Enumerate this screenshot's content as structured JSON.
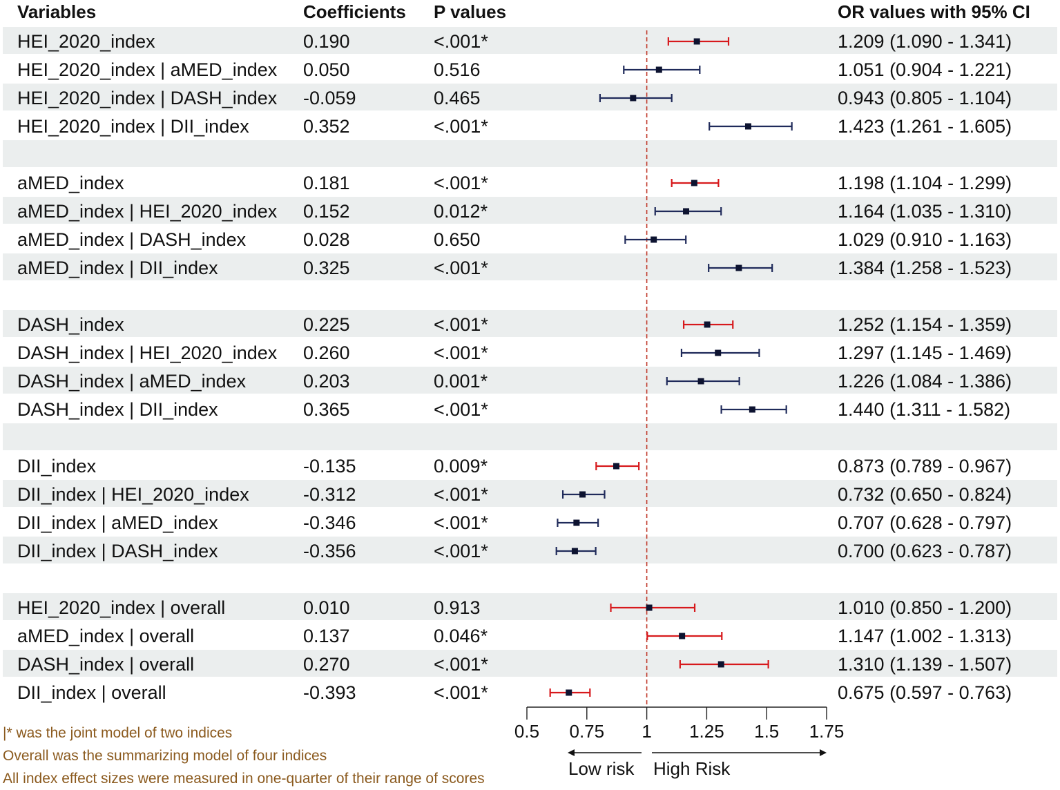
{
  "table": {
    "headers": {
      "variables": "Variables",
      "coefficients": "Coefficients",
      "p_values": "P values",
      "or_ci": "OR values with 95% CI"
    },
    "rows": [
      {
        "variable": "HEI_2020_index",
        "coef": "0.190",
        "p": "<.001*",
        "or_text": "1.209 (1.090 - 1.341)",
        "or": 1.209,
        "lower": 1.09,
        "upper": 1.341,
        "kind": "single",
        "shaded": true
      },
      {
        "variable": "HEI_2020_index | aMED_index",
        "coef": "0.050",
        "p": "0.516",
        "or_text": "1.051 (0.904 - 1.221)",
        "or": 1.051,
        "lower": 0.904,
        "upper": 1.221,
        "kind": "joint",
        "shaded": false
      },
      {
        "variable": "HEI_2020_index | DASH_index",
        "coef": "-0.059",
        "p": "0.465",
        "or_text": "0.943 (0.805 - 1.104)",
        "or": 0.943,
        "lower": 0.805,
        "upper": 1.104,
        "kind": "joint",
        "shaded": true
      },
      {
        "variable": "HEI_2020_index | DII_index",
        "coef": "0.352",
        "p": "<.001*",
        "or_text": "1.423 (1.261 - 1.605)",
        "or": 1.423,
        "lower": 1.261,
        "upper": 1.605,
        "kind": "joint",
        "shaded": false
      },
      {
        "variable": "",
        "coef": "",
        "p": "",
        "or_text": "",
        "kind": "spacer",
        "shaded": true
      },
      {
        "variable": "aMED_index",
        "coef": "0.181",
        "p": "<.001*",
        "or_text": "1.198 (1.104 - 1.299)",
        "or": 1.198,
        "lower": 1.104,
        "upper": 1.299,
        "kind": "single",
        "shaded": false
      },
      {
        "variable": "aMED_index | HEI_2020_index",
        "coef": "0.152",
        "p": "0.012*",
        "or_text": "1.164 (1.035 - 1.310)",
        "or": 1.164,
        "lower": 1.035,
        "upper": 1.31,
        "kind": "joint",
        "shaded": true
      },
      {
        "variable": "aMED_index | DASH_index",
        "coef": "0.028",
        "p": "0.650",
        "or_text": "1.029 (0.910 - 1.163)",
        "or": 1.029,
        "lower": 0.91,
        "upper": 1.163,
        "kind": "joint",
        "shaded": false
      },
      {
        "variable": "aMED_index | DII_index",
        "coef": "0.325",
        "p": "<.001*",
        "or_text": "1.384 (1.258 - 1.523)",
        "or": 1.384,
        "lower": 1.258,
        "upper": 1.523,
        "kind": "joint",
        "shaded": true
      },
      {
        "variable": "",
        "coef": "",
        "p": "",
        "or_text": "",
        "kind": "spacer",
        "shaded": false
      },
      {
        "variable": "DASH_index",
        "coef": "0.225",
        "p": "<.001*",
        "or_text": "1.252 (1.154 - 1.359)",
        "or": 1.252,
        "lower": 1.154,
        "upper": 1.359,
        "kind": "single",
        "shaded": true
      },
      {
        "variable": "DASH_index | HEI_2020_index",
        "coef": "0.260",
        "p": "<.001*",
        "or_text": "1.297 (1.145 - 1.469)",
        "or": 1.297,
        "lower": 1.145,
        "upper": 1.469,
        "kind": "joint",
        "shaded": false
      },
      {
        "variable": "DASH_index | aMED_index",
        "coef": "0.203",
        "p": "0.001*",
        "or_text": "1.226 (1.084 - 1.386)",
        "or": 1.226,
        "lower": 1.084,
        "upper": 1.386,
        "kind": "joint",
        "shaded": true
      },
      {
        "variable": "DASH_index | DII_index",
        "coef": "0.365",
        "p": "<.001*",
        "or_text": "1.440 (1.311 - 1.582)",
        "or": 1.44,
        "lower": 1.311,
        "upper": 1.582,
        "kind": "joint",
        "shaded": false
      },
      {
        "variable": "",
        "coef": "",
        "p": "",
        "or_text": "",
        "kind": "spacer",
        "shaded": true
      },
      {
        "variable": "DII_index",
        "coef": "-0.135",
        "p": "0.009*",
        "or_text": "0.873 (0.789 - 0.967)",
        "or": 0.873,
        "lower": 0.789,
        "upper": 0.967,
        "kind": "single",
        "shaded": false
      },
      {
        "variable": "DII_index | HEI_2020_index",
        "coef": "-0.312",
        "p": "<.001*",
        "or_text": "0.732 (0.650 - 0.824)",
        "or": 0.732,
        "lower": 0.65,
        "upper": 0.824,
        "kind": "joint",
        "shaded": true
      },
      {
        "variable": "DII_index | aMED_index",
        "coef": "-0.346",
        "p": "<.001*",
        "or_text": "0.707 (0.628 - 0.797)",
        "or": 0.707,
        "lower": 0.628,
        "upper": 0.797,
        "kind": "joint",
        "shaded": false
      },
      {
        "variable": "DII_index | DASH_index",
        "coef": "-0.356",
        "p": "<.001*",
        "or_text": "0.700 (0.623 - 0.787)",
        "or": 0.7,
        "lower": 0.623,
        "upper": 0.787,
        "kind": "joint",
        "shaded": true
      },
      {
        "variable": "",
        "coef": "",
        "p": "",
        "or_text": "",
        "kind": "spacer",
        "shaded": false
      },
      {
        "variable": "HEI_2020_index | overall",
        "coef": "0.010",
        "p": "0.913",
        "or_text": "1.010 (0.850 - 1.200)",
        "or": 1.01,
        "lower": 0.85,
        "upper": 1.2,
        "kind": "overall",
        "shaded": true
      },
      {
        "variable": "aMED_index | overall",
        "coef": "0.137",
        "p": "0.046*",
        "or_text": "1.147 (1.002 - 1.313)",
        "or": 1.147,
        "lower": 1.002,
        "upper": 1.313,
        "kind": "overall",
        "shaded": false
      },
      {
        "variable": "DASH_index | overall",
        "coef": "0.270",
        "p": "<.001*",
        "or_text": "1.310 (1.139 - 1.507)",
        "or": 1.31,
        "lower": 1.139,
        "upper": 1.507,
        "kind": "overall",
        "shaded": true
      },
      {
        "variable": "DII_index | overall",
        "coef": "-0.393",
        "p": "<.001*",
        "or_text": "0.675 (0.597 - 0.763)",
        "or": 0.675,
        "lower": 0.597,
        "upper": 0.763,
        "kind": "overall",
        "shaded": false
      }
    ]
  },
  "chart_data": {
    "type": "forest",
    "xlim": [
      0.5,
      1.75
    ],
    "x_ticks": [
      0.5,
      0.75,
      1,
      1.25,
      1.5,
      1.75
    ],
    "x_tick_labels": [
      "0.5",
      "0.75",
      "1",
      "1.25",
      "1.5",
      "1.75"
    ],
    "reference_line": 1,
    "direction_labels": {
      "left": "Low risk",
      "right": "High Risk"
    },
    "colors": {
      "single_ci": "#d7191c",
      "joint_ci": "#1f2a5a",
      "overall_ci": "#d7191c",
      "point": "#0d1330",
      "reference": "#c0392b",
      "band": "#ebeeee"
    }
  },
  "notes": [
    "|* was the joint model of two indices",
    "Overall was the summarizing model of four indices",
    "All index effect sizes were measured in one-quarter of their range of scores"
  ],
  "notes_color": "#8b5a1e"
}
